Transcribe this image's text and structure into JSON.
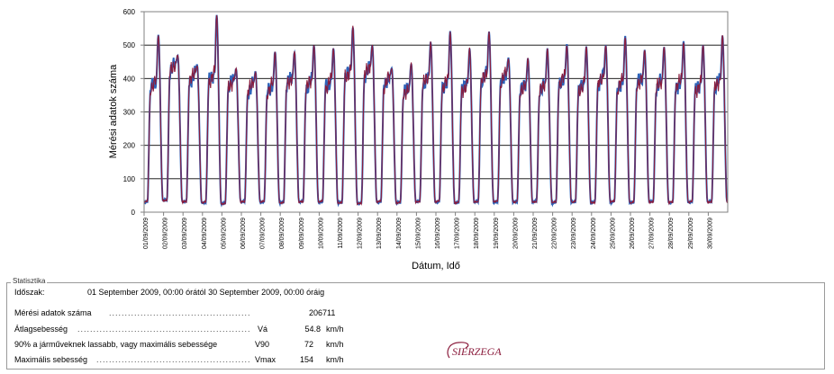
{
  "chart_data": {
    "type": "line",
    "title": "",
    "xlabel": "Dátum, Idő",
    "ylabel": "Mérési adatok száma",
    "ylim": [
      0,
      600
    ],
    "yticks": [
      0,
      100,
      200,
      300,
      400,
      500,
      600
    ],
    "grid": true,
    "x_categories": [
      "01/09/2009",
      "02/09/2009",
      "03/09/2009",
      "04/09/2009",
      "05/09/2009",
      "06/09/2009",
      "07/09/2009",
      "08/09/2009",
      "09/09/2009",
      "10/09/2009",
      "11/09/2009",
      "12/09/2009",
      "13/09/2009",
      "14/09/2009",
      "15/09/2009",
      "16/09/2009",
      "17/09/2009",
      "18/09/2009",
      "19/09/2009",
      "20/09/2009",
      "21/09/2009",
      "22/09/2009",
      "23/09/2009",
      "24/09/2009",
      "25/09/2009",
      "26/09/2009",
      "27/09/2009",
      "28/09/2009",
      "29/09/2009",
      "30/09/2009"
    ],
    "day_pattern": {
      "night_min": [
        30,
        35,
        30,
        28,
        25,
        30,
        30,
        28,
        30,
        30,
        28,
        25,
        30,
        28,
        30,
        30,
        28,
        30,
        30,
        30,
        30,
        28,
        30,
        28,
        30,
        28,
        30,
        28,
        30,
        30
      ],
      "morning_plateau": [
        370,
        420,
        390,
        390,
        370,
        360,
        360,
        380,
        370,
        370,
        400,
        410,
        380,
        350,
        380,
        370,
        360,
        390,
        390,
        360,
        360,
        380,
        360,
        380,
        370,
        380,
        370,
        370,
        360,
        370
      ],
      "evening_peak": [
        530,
        470,
        440,
        590,
        430,
        420,
        480,
        480,
        500,
        490,
        555,
        500,
        430,
        445,
        510,
        540,
        490,
        540,
        460,
        460,
        490,
        500,
        495,
        500,
        525,
        485,
        495,
        510,
        500,
        530
      ]
    },
    "series": [
      {
        "color": "#2e62b8"
      },
      {
        "color": "#8b1c3c"
      }
    ]
  },
  "stats": {
    "legend": "Statisztika",
    "period_label": "Időszak:",
    "period_value": "01 September 2009, 00:00 órától 30 September 2009, 00:00 óráig",
    "count_label": "Mérési adatok száma",
    "count_value": "206711",
    "avg_label": "Átlagsebesség",
    "avg_symbol": "Vá",
    "avg_value": "54.8",
    "avg_unit": "km/h",
    "v90_label": "90% a járműveknek lassabb, vagy maximális sebessége",
    "v90_symbol": "V90",
    "v90_value": "72",
    "v90_unit": "km/h",
    "max_label": "Maximális sebesség",
    "max_symbol": "Vmax",
    "max_value": "154",
    "max_unit": "km/h"
  },
  "logo_text": "SIERZEGA"
}
